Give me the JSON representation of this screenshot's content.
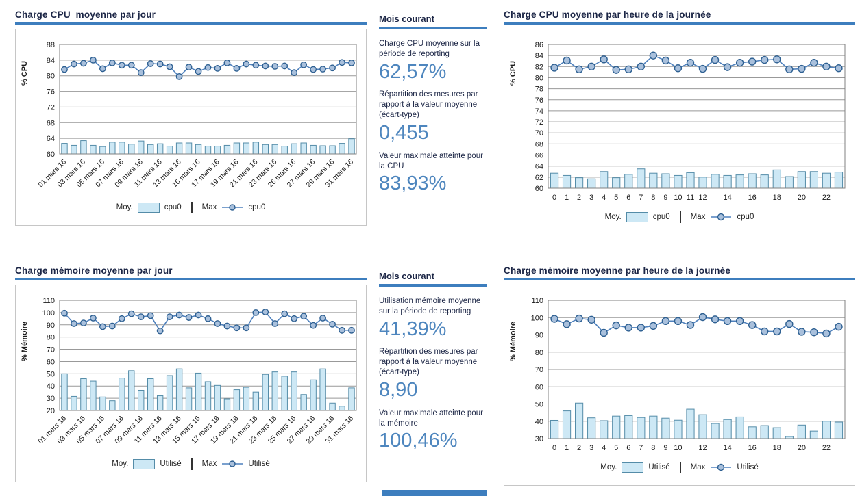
{
  "colors": {
    "accent": "#3D7EBE",
    "value_blue": "#4E86BE",
    "bar_fill": "#CDE8F5",
    "bar_stroke": "#548CA8",
    "line": "#4F81BD",
    "marker_fill": "#A9C0DC",
    "marker_stroke": "#2E6092",
    "grid": "#999999",
    "plot_border": "#808080",
    "box_border": "#C6C6C6",
    "title_color": "#1B2545"
  },
  "panels": {
    "cpu_daily": {
      "title": "Charge CPU  moyenne par jour",
      "legend": {
        "avg_label": "Moy.",
        "avg_series": "cpu0",
        "max_label": "Max",
        "max_series": "cpu0"
      }
    },
    "cpu_hourly": {
      "title": "Charge CPU moyenne par heure de la journée",
      "legend": {
        "avg_label": "Moy.",
        "avg_series": "cpu0",
        "max_label": "Max",
        "max_series": "cpu0"
      }
    },
    "mem_daily": {
      "title": "Charge mémoire moyenne par jour",
      "legend": {
        "avg_label": "Moy.",
        "avg_series": "Utilisé",
        "max_label": "Max",
        "max_series": "Utilisé"
      }
    },
    "mem_hourly": {
      "title": "Charge mémoire moyenne par heure de la journée",
      "legend": {
        "avg_label": "Moy.",
        "avg_series": "Utilisé",
        "max_label": "Max",
        "max_series": "Utilisé"
      }
    }
  },
  "stats_top": {
    "header": "Mois courant",
    "items": [
      {
        "label": "Charge CPU moyenne sur la période de reporting",
        "value": "62,57%"
      },
      {
        "label": "Répartition des mesures par rapport à la valeur moyenne (écart-type)",
        "value": "0,455"
      },
      {
        "label": "Valeur maximale atteinte pour la CPU",
        "value": "83,93%"
      }
    ]
  },
  "stats_bottom": {
    "header": "Mois courant",
    "items": [
      {
        "label": "Utilisation mémoire moyenne sur la période de reporting",
        "value": "41,39%"
      },
      {
        "label": "Répartition des mesures par rapport à la valeur moyenne (écart-type)",
        "value": "8,90"
      },
      {
        "label": "Valeur maximale atteinte pour la mémoire",
        "value": "100,46%"
      }
    ]
  },
  "chart_data": [
    {
      "id": "cpu_daily",
      "type": "bar+line",
      "title": "Charge CPU  moyenne par jour",
      "ylabel": "% CPU",
      "ylim": [
        60,
        88
      ],
      "ystep": 4,
      "grid": true,
      "legend_position": "bottom",
      "categories": [
        "01 mars 16",
        "02 mars 16",
        "03 mars 16",
        "04 mars 16",
        "05 mars 16",
        "06 mars 16",
        "07 mars 16",
        "08 mars 16",
        "09 mars 16",
        "10 mars 16",
        "11 mars 16",
        "12 mars 16",
        "13 mars 16",
        "14 mars 16",
        "15 mars 16",
        "16 mars 16",
        "17 mars 16",
        "18 mars 16",
        "19 mars 16",
        "20 mars 16",
        "21 mars 16",
        "22 mars 16",
        "23 mars 16",
        "24 mars 16",
        "25 mars 16",
        "26 mars 16",
        "27 mars 16",
        "28 mars 16",
        "29 mars 16",
        "30 mars 16",
        "31 mars 16"
      ],
      "xticks": [
        "01 mars 16",
        "",
        "03 mars 16",
        "",
        "05 mars 16",
        "",
        "07 mars 16",
        "",
        "09 mars 16",
        "",
        "11 mars 16",
        "",
        "13 mars 16",
        "",
        "15 mars 16",
        "",
        "17 mars 16",
        "",
        "19 mars 16",
        "",
        "21 mars 16",
        "",
        "23 mars 16",
        "",
        "25 mars 16",
        "",
        "27 mars 16",
        "",
        "29 mars 16",
        "",
        "31 mars 16"
      ],
      "rotate_xlabels": true,
      "series": [
        {
          "name": "cpu0",
          "role": "Moy.",
          "type": "bar",
          "values": [
            62.7,
            62.2,
            63.4,
            62.2,
            61.9,
            63.0,
            63.0,
            62.5,
            63.3,
            62.4,
            62.6,
            62.0,
            62.8,
            62.8,
            62.4,
            62.0,
            62.0,
            62.2,
            62.8,
            62.8,
            63.0,
            62.4,
            62.4,
            62.0,
            62.6,
            62.8,
            62.2,
            62.1,
            62.1,
            62.7,
            63.9
          ]
        },
        {
          "name": "cpu0",
          "role": "Max",
          "type": "line",
          "values": [
            81.6,
            83.0,
            83.2,
            84.0,
            81.8,
            83.3,
            82.7,
            82.7,
            80.8,
            83.1,
            83.0,
            82.3,
            79.8,
            82.2,
            81.1,
            82.1,
            81.9,
            83.3,
            81.9,
            83.0,
            82.7,
            82.5,
            82.4,
            82.5,
            80.8,
            82.8,
            81.6,
            81.7,
            82.0,
            83.4,
            83.3
          ]
        }
      ]
    },
    {
      "id": "cpu_hourly",
      "type": "bar+line",
      "title": "Charge CPU moyenne par heure de la journée",
      "ylabel": "% CPU",
      "ylim": [
        60,
        86
      ],
      "ystep": 2,
      "grid": true,
      "legend_position": "bottom",
      "categories": [
        "0",
        "1",
        "2",
        "3",
        "4",
        "5",
        "6",
        "7",
        "8",
        "9",
        "10",
        "11",
        "12",
        "13",
        "14",
        "15",
        "16",
        "17",
        "18",
        "19",
        "20",
        "21",
        "22",
        "23"
      ],
      "xticks": [
        "0",
        "1",
        "2",
        "3",
        "4",
        "5",
        "6",
        "7",
        "8",
        "9",
        "10",
        "11",
        "12",
        "",
        "14",
        "",
        "16",
        "",
        "18",
        "",
        "20",
        "",
        "22",
        ""
      ],
      "rotate_xlabels": false,
      "series": [
        {
          "name": "cpu0",
          "role": "Moy.",
          "type": "bar",
          "values": [
            62.7,
            62.3,
            61.9,
            61.7,
            63.0,
            61.9,
            62.5,
            63.5,
            62.7,
            62.6,
            62.3,
            62.8,
            62.0,
            62.5,
            62.3,
            62.4,
            62.6,
            62.4,
            63.3,
            62.1,
            63.0,
            63.0,
            62.7,
            62.9
          ]
        },
        {
          "name": "cpu0",
          "role": "Max",
          "type": "line",
          "values": [
            81.8,
            83.1,
            81.5,
            82.0,
            83.3,
            81.4,
            81.5,
            82.0,
            84.0,
            83.1,
            81.7,
            82.7,
            81.6,
            83.2,
            81.9,
            82.7,
            82.9,
            83.2,
            83.3,
            81.5,
            81.6,
            82.7,
            82.0,
            81.7
          ]
        }
      ]
    },
    {
      "id": "mem_daily",
      "type": "bar+line",
      "title": "Charge mémoire moyenne par jour",
      "ylabel": "% Mémoire",
      "ylim": [
        20,
        110
      ],
      "ystep": 10,
      "grid": true,
      "legend_position": "bottom",
      "categories": [
        "01 mars 16",
        "02 mars 16",
        "03 mars 16",
        "04 mars 16",
        "05 mars 16",
        "06 mars 16",
        "07 mars 16",
        "08 mars 16",
        "09 mars 16",
        "10 mars 16",
        "11 mars 16",
        "12 mars 16",
        "13 mars 16",
        "14 mars 16",
        "15 mars 16",
        "16 mars 16",
        "17 mars 16",
        "18 mars 16",
        "19 mars 16",
        "20 mars 16",
        "21 mars 16",
        "22 mars 16",
        "23 mars 16",
        "24 mars 16",
        "25 mars 16",
        "26 mars 16",
        "27 mars 16",
        "28 mars 16",
        "29 mars 16",
        "30 mars 16",
        "31 mars 16"
      ],
      "xticks": [
        "01 mars 16",
        "",
        "03 mars 16",
        "",
        "05 mars 16",
        "",
        "07 mars 16",
        "",
        "09 mars 16",
        "",
        "11 mars 16",
        "",
        "13 mars 16",
        "",
        "15 mars 16",
        "",
        "17 mars 16",
        "",
        "19 mars 16",
        "",
        "21 mars 16",
        "",
        "23 mars 16",
        "",
        "25 mars 16",
        "",
        "27 mars 16",
        "",
        "29 mars 16",
        "",
        "31 mars 16"
      ],
      "rotate_xlabels": true,
      "series": [
        {
          "name": "Utilisé",
          "role": "Moy.",
          "type": "bar",
          "values": [
            50,
            31.5,
            46,
            44,
            31,
            28,
            46.5,
            52.5,
            36.5,
            46,
            32,
            48.5,
            54,
            38.5,
            50.5,
            43.5,
            40.5,
            29.5,
            37,
            39,
            35,
            49.5,
            51.5,
            48,
            51.5,
            33,
            45,
            54,
            26,
            23.5,
            38.5
          ]
        },
        {
          "name": "Utilisé",
          "role": "Max",
          "type": "line",
          "values": [
            99.5,
            91,
            91.5,
            95.5,
            88.5,
            89,
            95,
            99,
            96.5,
            97.5,
            85,
            96.5,
            98,
            96,
            98,
            95,
            91,
            89,
            87.5,
            87.5,
            100,
            100.5,
            91,
            99,
            95,
            97,
            89.5,
            95.5,
            90.5,
            85.5,
            85.5
          ]
        }
      ]
    },
    {
      "id": "mem_hourly",
      "type": "bar+line",
      "title": "Charge mémoire moyenne par heure de la journée",
      "ylabel": "% Mémoire",
      "ylim": [
        30,
        110
      ],
      "ystep": 10,
      "grid": true,
      "legend_position": "bottom",
      "categories": [
        "0",
        "1",
        "2",
        "3",
        "4",
        "5",
        "6",
        "7",
        "8",
        "9",
        "10",
        "11",
        "12",
        "13",
        "14",
        "15",
        "16",
        "17",
        "18",
        "19",
        "20",
        "21",
        "22",
        "23"
      ],
      "xticks": [
        "0",
        "1",
        "2",
        "3",
        "4",
        "5",
        "6",
        "7",
        "8",
        "9",
        "10",
        "",
        "12",
        "",
        "14",
        "",
        "16",
        "",
        "18",
        "",
        "20",
        "",
        "22",
        ""
      ],
      "rotate_xlabels": false,
      "series": [
        {
          "name": "Utilisé",
          "role": "Moy.",
          "type": "bar",
          "values": [
            40.5,
            46,
            50.5,
            42,
            40.3,
            43,
            43.3,
            42.2,
            43,
            41.8,
            40.6,
            47,
            43.8,
            38.7,
            41,
            42.5,
            36.8,
            37.5,
            36.3,
            31.2,
            37.8,
            34.3,
            40,
            39.5
          ]
        },
        {
          "name": "Utilisé",
          "role": "Max",
          "type": "line",
          "values": [
            99.3,
            96.2,
            99.5,
            98.8,
            91.2,
            95.5,
            94.2,
            94.2,
            95.2,
            98,
            98,
            95.7,
            100.3,
            99,
            98,
            98,
            95.7,
            92,
            92,
            96.3,
            91.8,
            91.5,
            90.8,
            94.7
          ]
        }
      ]
    }
  ]
}
